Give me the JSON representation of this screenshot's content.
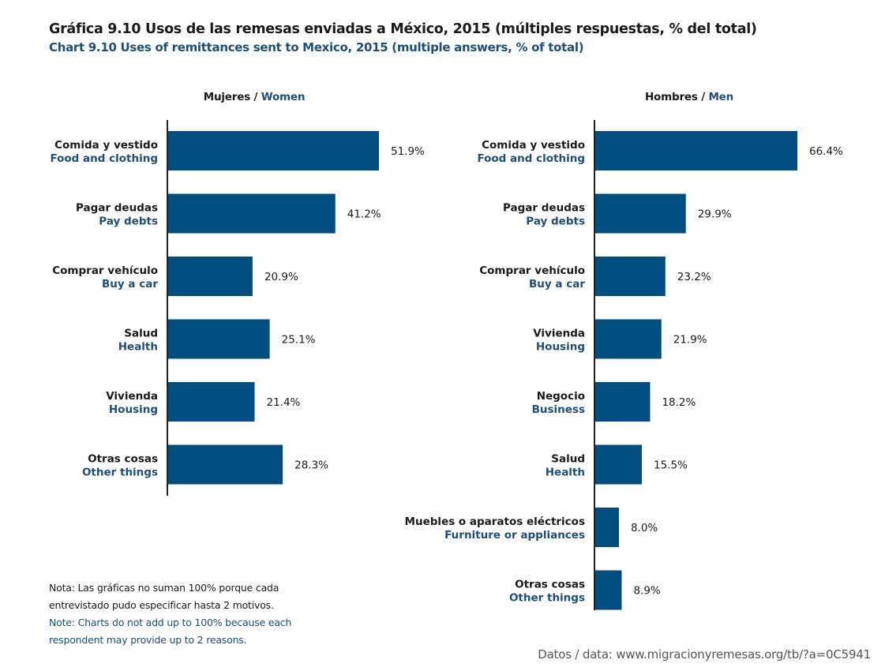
{
  "title": {
    "es": "Gráfica 9.10 Usos de las remesas enviadas a México, 2015 (múltiples respuestas, % del total)",
    "en": "Chart 9.10 Uses of remittances sent to Mexico, 2015 (multiple answers, % of total)"
  },
  "colors": {
    "bar": "#004d7f",
    "english_text": "#1f4e79",
    "axis": "#222222"
  },
  "chart_data": [
    {
      "type": "bar",
      "orientation": "horizontal",
      "panel": "women",
      "title_es": "Mujeres",
      "title_sep": " / ",
      "title_en": "Women",
      "categories": [
        {
          "es": "Comida y vestido",
          "en": "Food and clothing"
        },
        {
          "es": "Pagar deudas",
          "en": "Pay debts"
        },
        {
          "es": "Comprar vehículo",
          "en": "Buy a car"
        },
        {
          "es": "Salud",
          "en": "Health"
        },
        {
          "es": "Vivienda",
          "en": "Housing"
        },
        {
          "es": "Otras cosas",
          "en": "Other things"
        }
      ],
      "values": [
        51.9,
        41.2,
        20.9,
        25.1,
        21.4,
        28.3
      ],
      "value_labels": [
        "51.9%",
        "41.2%",
        "20.9%",
        "25.1%",
        "21.4%",
        "28.3%"
      ],
      "unit": "%",
      "xlim": [
        0,
        70
      ],
      "grid": false,
      "legend": "none"
    },
    {
      "type": "bar",
      "orientation": "horizontal",
      "panel": "men",
      "title_es": "Hombres",
      "title_sep": " / ",
      "title_en": "Men",
      "categories": [
        {
          "es": "Comida y vestido",
          "en": "Food and clothing"
        },
        {
          "es": "Pagar deudas",
          "en": "Pay debts"
        },
        {
          "es": "Comprar vehículo",
          "en": "Buy a car"
        },
        {
          "es": "Vivienda",
          "en": "Housing"
        },
        {
          "es": "Negocio",
          "en": "Business"
        },
        {
          "es": "Salud",
          "en": "Health"
        },
        {
          "es": "Muebles o aparatos eléctricos",
          "en": "Furniture or appliances"
        },
        {
          "es": "Otras cosas",
          "en": "Other things"
        }
      ],
      "values": [
        66.4,
        29.9,
        23.2,
        21.9,
        18.2,
        15.5,
        8.0,
        8.9
      ],
      "value_labels": [
        "66.4%",
        "29.9%",
        "23.2%",
        "21.9%",
        "18.2%",
        "15.5%",
        "8.0%",
        "8.9%"
      ],
      "unit": "%",
      "xlim": [
        0,
        70
      ],
      "grid": false,
      "legend": "none"
    }
  ],
  "note": {
    "es_line1": "Nota: Las gráficas no suman 100% porque cada",
    "es_line2": "entrevistado pudo especificar hasta 2 motivos.",
    "en_line1": "Note: Charts do not add up to 100% because each",
    "en_line2": "respondent may provide up to 2 reasons."
  },
  "source": "Datos / data: www.migracionyremesas.org/tb/?a=0C5941"
}
